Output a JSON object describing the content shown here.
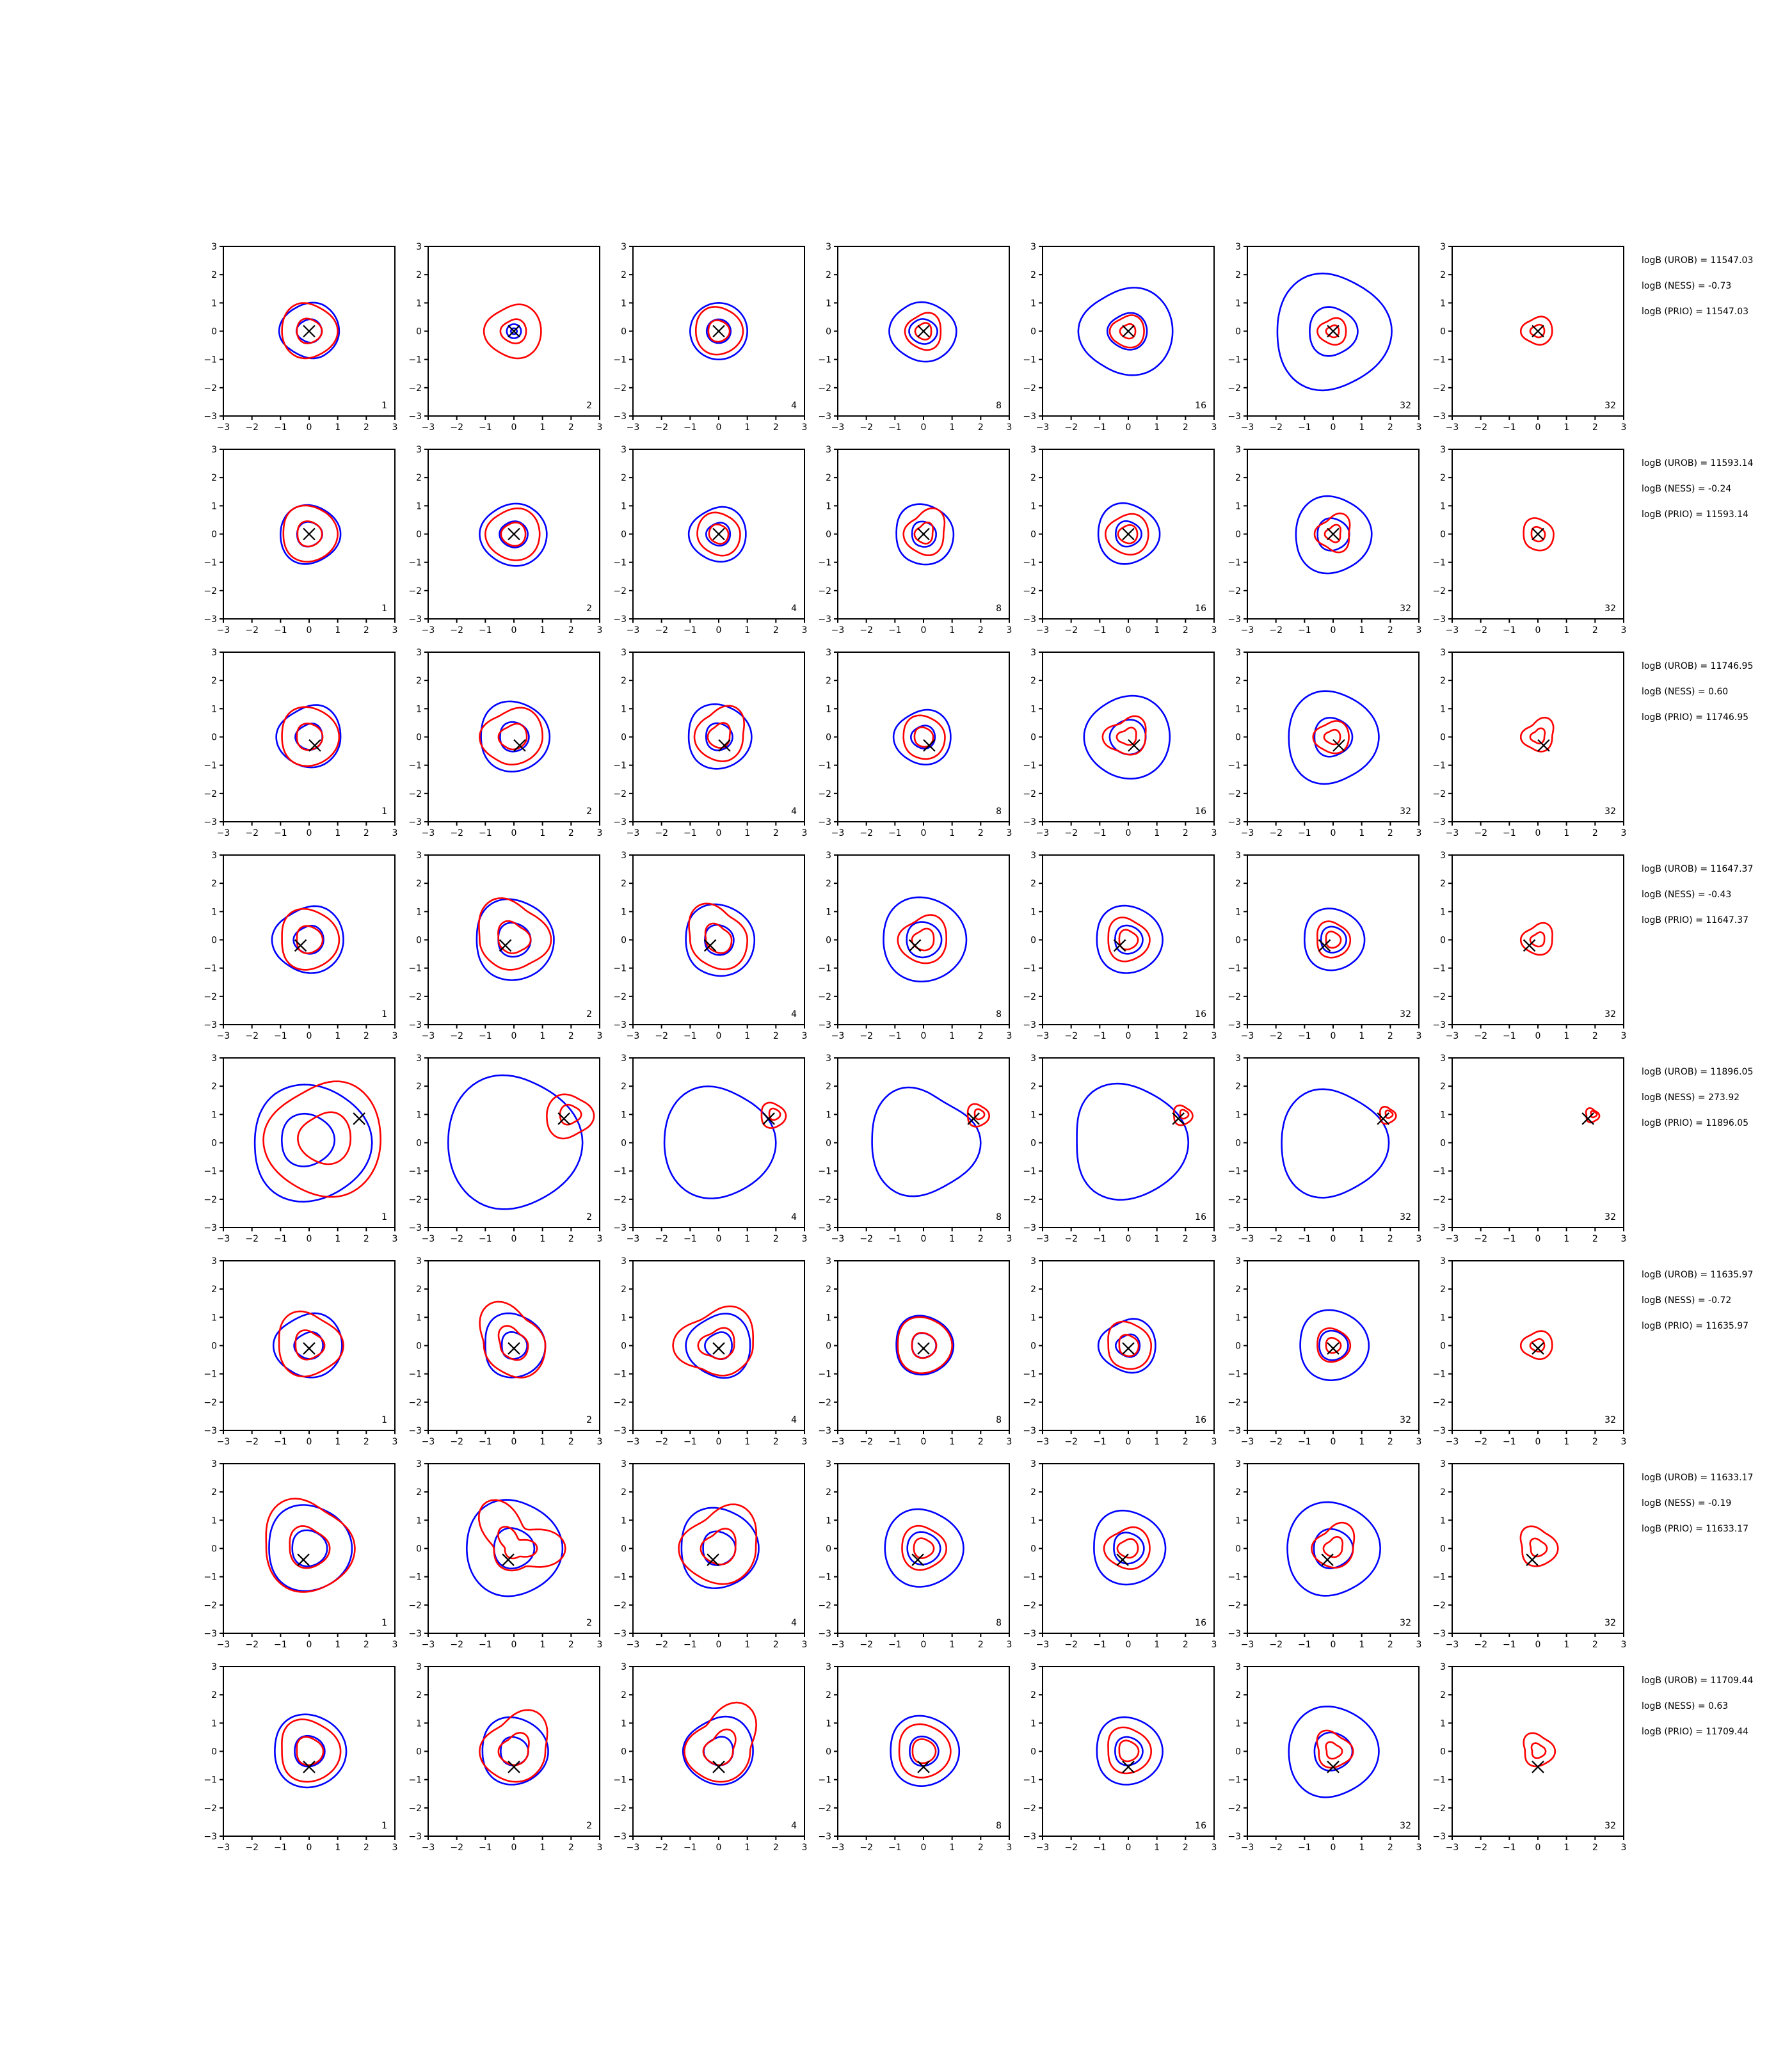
{
  "chart_data": {
    "type": "contour",
    "grid": {
      "rows": 8,
      "cols": 7
    },
    "xlim": [
      -3,
      3
    ],
    "ylim": [
      -3,
      3
    ],
    "ticks": [
      -3,
      -2,
      -1,
      0,
      1,
      2,
      3
    ],
    "tick_labels": [
      "−3",
      "−2",
      "−1",
      "0",
      "1",
      "2",
      "3"
    ],
    "colors": {
      "series_a": "#0000ff",
      "series_b": "#ff0000",
      "marker": "#000000"
    },
    "column_counts": [
      "1",
      "2",
      "4",
      "8",
      "16",
      "32",
      "32"
    ],
    "rows": [
      {
        "truth": [
          0.0,
          0.0
        ],
        "blue": [
          [
            1.05,
            1.05,
            0.95,
            1.05,
            0.9,
            1.0
          ],
          [
            0.25,
            0.25,
            0.25,
            0.25,
            0.25,
            0.25
          ],
          [
            1.0,
            1.0,
            1.0,
            1.0,
            1.0,
            1.0
          ],
          [
            1.15,
            1.0,
            1.05,
            1.2,
            1.05,
            1.1
          ],
          [
            1.55,
            1.6,
            1.45,
            1.75,
            1.5,
            1.6
          ],
          [
            2.05,
            1.85,
            2.15,
            1.95,
            2.2,
            1.9
          ],
          null
        ],
        "red": [
          [
            1.0,
            0.9,
            1.05,
            0.95,
            1.0,
            0.9
          ],
          [
            0.95,
            1.0,
            0.85,
            1.05,
            0.9,
            1.0
          ],
          [
            0.85,
            0.8,
            0.9,
            0.8,
            0.85,
            0.8
          ],
          [
            0.6,
            0.7,
            0.55,
            0.65,
            0.6,
            0.7
          ],
          [
            0.55,
            0.6,
            0.5,
            0.65,
            0.55,
            0.6
          ],
          [
            0.45,
            0.5,
            0.4,
            0.55,
            0.45,
            0.5
          ],
          [
            0.5,
            0.55,
            0.45,
            0.6,
            0.45,
            0.5
          ]
        ],
        "stats": [
          "logB (UROB) = 11547.03",
          "logB (NESS) = -0.73",
          "logB (PRIO) = 11547.03"
        ]
      },
      {
        "truth": [
          0.0,
          0.0
        ],
        "blue": [
          [
            1.1,
            1.0,
            1.05,
            1.0,
            1.1,
            1.0
          ],
          [
            1.15,
            1.1,
            1.05,
            1.2,
            1.1,
            1.15
          ],
          [
            0.95,
            1.0,
            0.9,
            1.05,
            0.95,
            1.0
          ],
          [
            1.05,
            1.0,
            1.1,
            0.95,
            1.05,
            1.1
          ],
          [
            1.1,
            1.0,
            1.15,
            1.05,
            1.1,
            1.0
          ],
          [
            1.35,
            1.25,
            1.4,
            1.3,
            1.45,
            1.3
          ],
          null
        ],
        "red": [
          [
            1.0,
            0.95,
            1.05,
            0.9,
            1.0,
            0.95
          ],
          [
            0.9,
            0.95,
            0.85,
            1.0,
            0.9,
            0.95
          ],
          [
            0.75,
            0.7,
            0.8,
            0.75,
            0.7,
            0.8
          ],
          [
            0.7,
            1.0,
            0.6,
            0.7,
            0.65,
            0.8
          ],
          [
            0.7,
            0.75,
            0.65,
            0.8,
            0.7,
            0.75
          ],
          [
            0.55,
            0.8,
            0.5,
            0.65,
            0.5,
            0.7
          ],
          [
            0.55,
            0.5,
            0.6,
            0.5,
            0.55,
            0.6
          ]
        ],
        "stats": [
          "logB (UROB) = 11593.14",
          "logB (NESS) = -0.24",
          "logB (PRIO) = 11593.14"
        ]
      },
      {
        "truth": [
          0.2,
          -0.3
        ],
        "blue": [
          [
            1.1,
            1.2,
            1.0,
            1.15,
            1.05,
            1.1
          ],
          [
            1.25,
            1.2,
            1.3,
            1.15,
            1.25,
            1.2
          ],
          [
            1.15,
            1.1,
            1.2,
            1.05,
            1.15,
            1.1
          ],
          [
            0.95,
            1.0,
            0.9,
            1.05,
            0.95,
            1.0
          ],
          [
            1.45,
            1.5,
            1.4,
            1.55,
            1.45,
            1.5
          ],
          [
            1.6,
            1.5,
            1.7,
            1.55,
            1.75,
            1.5
          ],
          null
        ],
        "red": [
          [
            1.05,
            1.0,
            1.1,
            0.95,
            1.05,
            1.0
          ],
          [
            1.0,
            1.1,
            0.9,
            1.2,
            1.0,
            0.95
          ],
          [
            0.85,
            1.2,
            0.8,
            0.85,
            0.8,
            0.9
          ],
          [
            0.75,
            0.7,
            0.8,
            0.7,
            0.75,
            0.8
          ],
          [
            0.6,
            0.8,
            0.55,
            0.9,
            0.6,
            0.65
          ],
          [
            0.55,
            0.6,
            0.5,
            0.7,
            0.55,
            0.6
          ],
          [
            0.5,
            0.75,
            0.45,
            0.6,
            0.45,
            0.55
          ]
        ],
        "stats": [
          "logB (UROB) = 11746.95",
          "logB (NESS) = 0.60",
          "logB (PRIO) = 11746.95"
        ]
      },
      {
        "truth": [
          -0.3,
          -0.2
        ],
        "blue": [
          [
            1.2,
            1.25,
            1.1,
            1.3,
            1.15,
            1.2
          ],
          [
            1.4,
            1.35,
            1.5,
            1.3,
            1.45,
            1.4
          ],
          [
            1.25,
            1.2,
            1.3,
            1.15,
            1.25,
            1.3
          ],
          [
            1.5,
            1.45,
            1.55,
            1.4,
            1.5,
            1.45
          ],
          [
            1.2,
            1.15,
            1.25,
            1.1,
            1.2,
            1.15
          ],
          [
            1.1,
            1.05,
            1.15,
            1.0,
            1.1,
            1.05
          ],
          null
        ],
        "red": [
          [
            1.05,
            1.0,
            1.15,
            0.95,
            1.1,
            1.0
          ],
          [
            1.3,
            1.1,
            1.6,
            1.2,
            1.1,
            1.0
          ],
          [
            1.0,
            0.9,
            1.4,
            1.0,
            0.95,
            1.1
          ],
          [
            0.8,
            0.95,
            0.7,
            0.9,
            0.8,
            0.85
          ],
          [
            0.75,
            0.65,
            0.85,
            0.7,
            0.8,
            0.7
          ],
          [
            0.6,
            0.55,
            0.7,
            0.55,
            0.65,
            0.6
          ],
          [
            0.5,
            0.65,
            0.45,
            0.6,
            0.5,
            0.55
          ]
        ],
        "stats": [
          "logB (UROB) = 11647.37",
          "logB (NESS) = -0.43",
          "logB (PRIO) = 11647.37"
        ]
      },
      {
        "truth": [
          1.75,
          0.85
        ],
        "blue": [
          [
            2.2,
            2.0,
            2.1,
            1.9,
            2.15,
            2.0
          ],
          [
            2.4,
            2.2,
            2.5,
            2.3,
            2.45,
            2.2
          ],
          [
            2.0,
            1.8,
            2.1,
            1.9,
            2.05,
            1.85
          ],
          [
            2.0,
            1.6,
            2.1,
            1.8,
            2.0,
            1.7
          ],
          [
            2.1,
            1.9,
            2.2,
            1.8,
            2.1,
            1.9
          ],
          [
            1.95,
            1.7,
            2.0,
            1.8,
            2.05,
            1.75
          ],
          null
        ],
        "red": [
          [
            2.0,
            2.2,
            1.8,
            2.1,
            1.9,
            2.1
          ],
          [
            0.9,
            0.7,
            0.8,
            0.75,
            0.85,
            0.7
          ],
          [
            0.45,
            0.4,
            0.5,
            0.4,
            0.45,
            0.4
          ],
          [
            0.4,
            0.35,
            0.45,
            0.35,
            0.4,
            0.35
          ],
          [
            0.35,
            0.3,
            0.4,
            0.3,
            0.35,
            0.3
          ],
          [
            0.3,
            0.25,
            0.35,
            0.25,
            0.3,
            0.25
          ],
          [
            0.25,
            0.2,
            0.3,
            0.2,
            0.25,
            0.2
          ]
        ],
        "stats": [
          "logB (UROB) = 11896.05",
          "logB (NESS) = 273.92",
          "logB (PRIO) = 11896.05"
        ]
      },
      {
        "truth": [
          0.0,
          -0.1
        ],
        "blue": [
          [
            1.15,
            1.2,
            1.05,
            1.25,
            1.1,
            1.15
          ],
          [
            1.1,
            1.05,
            1.2,
            1.0,
            1.15,
            1.1
          ],
          [
            1.1,
            1.2,
            1.0,
            1.15,
            1.05,
            1.2
          ],
          [
            1.05,
            1.0,
            1.1,
            0.95,
            1.05,
            1.0
          ],
          [
            0.95,
            1.0,
            0.85,
            1.05,
            0.9,
            1.0
          ],
          [
            1.25,
            1.2,
            1.3,
            1.15,
            1.25,
            1.2
          ],
          null
        ],
        "red": [
          [
            1.2,
            1.0,
            1.3,
            1.05,
            1.15,
            1.0
          ],
          [
            1.1,
            1.0,
            1.7,
            1.05,
            1.0,
            1.2
          ],
          [
            1.2,
            1.5,
            1.1,
            1.6,
            1.0,
            1.1
          ],
          [
            1.0,
            0.95,
            1.05,
            0.9,
            1.0,
            0.95
          ],
          [
            0.8,
            0.75,
            0.9,
            0.7,
            0.8,
            0.85
          ],
          [
            0.6,
            0.55,
            0.65,
            0.55,
            0.6,
            0.55
          ],
          [
            0.5,
            0.55,
            0.45,
            0.6,
            0.45,
            0.5
          ]
        ],
        "stats": [
          "logB (UROB) = 11635.97",
          "logB (NESS) = -0.72",
          "logB (PRIO) = 11635.97"
        ]
      },
      {
        "truth": [
          -0.2,
          -0.4
        ],
        "blue": [
          [
            1.5,
            1.45,
            1.6,
            1.4,
            1.55,
            1.45
          ],
          [
            1.7,
            1.6,
            1.8,
            1.65,
            1.75,
            1.6
          ],
          [
            1.4,
            1.35,
            1.5,
            1.3,
            1.45,
            1.35
          ],
          [
            1.4,
            1.3,
            1.45,
            1.35,
            1.4,
            1.3
          ],
          [
            1.3,
            1.25,
            1.4,
            1.2,
            1.3,
            1.25
          ],
          [
            1.65,
            1.55,
            1.7,
            1.6,
            1.75,
            1.55
          ],
          null
        ],
        "red": [
          [
            1.6,
            1.4,
            1.9,
            1.5,
            1.6,
            1.45
          ],
          [
            1.8,
            0.8,
            1.9,
            0.7,
            0.8,
            0.75
          ],
          [
            1.3,
            1.7,
            1.1,
            1.4,
            1.2,
            1.3
          ],
          [
            0.8,
            0.7,
            0.85,
            0.75,
            0.8,
            0.7
          ],
          [
            0.75,
            0.8,
            0.65,
            0.85,
            0.7,
            0.75
          ],
          [
            0.7,
            1.0,
            0.6,
            0.75,
            0.65,
            0.7
          ],
          [
            0.7,
            0.6,
            0.85,
            0.55,
            0.65,
            0.6
          ]
        ],
        "stats": [
          "logB (UROB) = 11633.17",
          "logB (NESS) = -0.19",
          "logB (PRIO) = 11633.17"
        ]
      },
      {
        "truth": [
          0.0,
          -0.55
        ],
        "blue": [
          [
            1.3,
            1.25,
            1.35,
            1.2,
            1.3,
            1.25
          ],
          [
            1.2,
            1.15,
            1.25,
            1.1,
            1.2,
            1.15
          ],
          [
            1.2,
            1.3,
            1.1,
            1.25,
            1.15,
            1.2
          ],
          [
            1.25,
            1.2,
            1.3,
            1.15,
            1.25,
            1.2
          ],
          [
            1.2,
            1.15,
            1.25,
            1.1,
            1.2,
            1.15
          ],
          [
            1.6,
            1.5,
            1.65,
            1.55,
            1.7,
            1.5
          ],
          null
        ],
        "red": [
          [
            1.1,
            1.0,
            1.2,
            0.95,
            1.1,
            1.05
          ],
          [
            1.1,
            1.6,
            1.0,
            1.2,
            1.05,
            1.1
          ],
          [
            1.1,
            1.9,
            1.0,
            1.2,
            1.05,
            1.1
          ],
          [
            0.95,
            0.9,
            1.0,
            0.85,
            0.95,
            0.9
          ],
          [
            0.8,
            0.75,
            0.9,
            0.7,
            0.8,
            0.75
          ],
          [
            0.7,
            0.55,
            0.8,
            0.5,
            0.6,
            0.55
          ],
          [
            0.6,
            0.5,
            0.7,
            0.45,
            0.55,
            0.5
          ]
        ],
        "stats": [
          "logB (UROB) = 11709.44",
          "logB (NESS) = 0.63",
          "logB (PRIO) = 11709.44"
        ]
      }
    ]
  }
}
